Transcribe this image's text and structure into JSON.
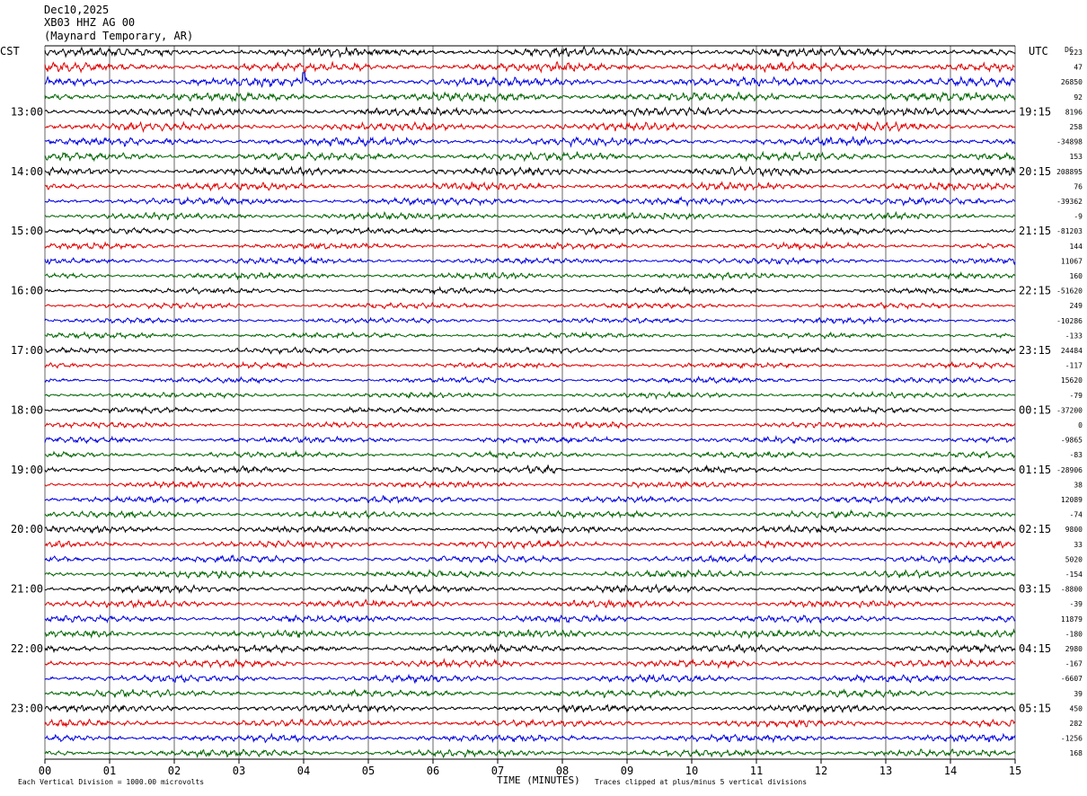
{
  "header": {
    "date": "Dec10,2025",
    "station": "XB03 HHZ AG 00",
    "location": "(Maynard Temporary, AR)"
  },
  "axes": {
    "left_zone": "CST",
    "right_zone": "UTC",
    "dc_label": "DC",
    "xlabel": "TIME (MINUTES)",
    "x_ticks": [
      "00",
      "01",
      "02",
      "03",
      "04",
      "05",
      "06",
      "07",
      "08",
      "09",
      "10",
      "11",
      "12",
      "13",
      "14",
      "15"
    ]
  },
  "footer": {
    "scale_note": "Each Vertical Division = 1000.00 microvolts",
    "clip_note": "Traces clipped at plus/minus 5 vertical divisions"
  },
  "colors": {
    "cycle": [
      "#000000",
      "#e00000",
      "#0000e0",
      "#006400"
    ],
    "grid": "#000000",
    "text": "#000000"
  },
  "chart_data": {
    "type": "line",
    "x_range_minutes": [
      0,
      15
    ],
    "trace_minutes": 15,
    "trace_count": 48,
    "start_hour_cst": "12:00",
    "left_hour_labels": [
      "13:00",
      "14:00",
      "15:00",
      "16:00",
      "17:00",
      "18:00",
      "19:00",
      "20:00",
      "21:00",
      "22:00",
      "23:00"
    ],
    "right_hour_labels": [
      "19:15",
      "20:15",
      "21:15",
      "22:15",
      "23:15",
      "00:15",
      "01:15",
      "02:15",
      "03:15",
      "04:15",
      "05:15"
    ],
    "dc_offsets": [
      "223",
      "47",
      "26850",
      "92",
      "8196",
      "258",
      "-34898",
      "153",
      "208895",
      "76",
      "-39362",
      "-9",
      "-81203",
      "144",
      "11067",
      "160",
      "-51620",
      "249",
      "-10286",
      "-133",
      "24484",
      "-117",
      "15620",
      "-79",
      "-37200",
      "0",
      "-9865",
      "-83",
      "-28906",
      "38",
      "12089",
      "-74",
      "9800",
      "33",
      "5020",
      "-154",
      "-8800",
      "-39",
      "11879",
      "-180",
      "2980",
      "-167",
      "-6607",
      "39",
      "450",
      "282",
      "-1256",
      "168"
    ],
    "amplitude_profile_microvolts": [
      800,
      800,
      800,
      800,
      750,
      750,
      750,
      750,
      700,
      700,
      650,
      600,
      550,
      550,
      550,
      550,
      500,
      500,
      500,
      500,
      500,
      500,
      500,
      500,
      500,
      500,
      550,
      550,
      550,
      550,
      600,
      600,
      600,
      600,
      650,
      650,
      650,
      650,
      650,
      650,
      650,
      650,
      650,
      650,
      650,
      650,
      650,
      650
    ],
    "notable_events": [
      {
        "trace": 2,
        "minute": 4.0,
        "description": "spike"
      },
      {
        "trace": 28,
        "minute": 7.7,
        "description": "burst"
      }
    ]
  }
}
